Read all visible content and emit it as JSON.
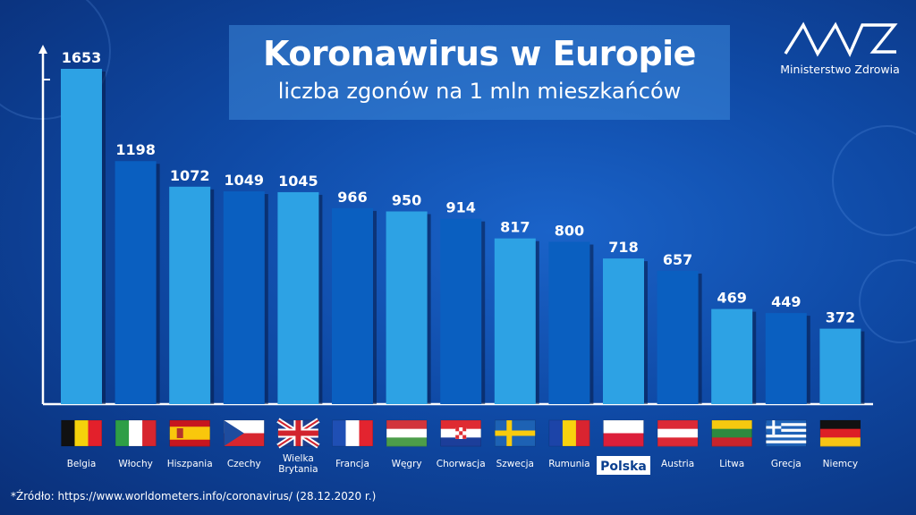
{
  "header": {
    "title": "Koronawirus w Europie",
    "subtitle": "liczba zgonów na 1 mln mieszkańców"
  },
  "logo": {
    "text": "Ministerstwo Zdrowia"
  },
  "source": "*Źródło: https://www.worldometers.info/coronavirus/ (28.12.2020 r.)",
  "colors": {
    "bar_light": "#2da2e4",
    "bar_dark": "#0a5fc0",
    "highlight_bg": "#ffffff",
    "highlight_text": "#0a3f8f"
  },
  "chart_data": {
    "type": "bar",
    "title": "Koronawirus w Europie",
    "subtitle": "liczba zgonów na 1 mln mieszkańców",
    "categories": [
      "Belgia",
      "Włochy",
      "Hiszpania",
      "Czechy",
      "Wielka Brytania",
      "Francja",
      "Węgry",
      "Chorwacja",
      "Szwecja",
      "Rumunia",
      "Polska",
      "Austria",
      "Litwa",
      "Grecja",
      "Niemcy"
    ],
    "values": [
      1653,
      1198,
      1072,
      1049,
      1045,
      966,
      950,
      914,
      817,
      800,
      718,
      657,
      469,
      449,
      372
    ],
    "highlighted": "Polska",
    "flags": [
      "belgium",
      "italy",
      "spain",
      "czechia",
      "united-kingdom",
      "france",
      "hungary",
      "croatia",
      "sweden",
      "romania",
      "poland",
      "austria",
      "lithuania",
      "greece",
      "germany"
    ],
    "ylim": [
      0,
      1653
    ],
    "grid": false,
    "legend": "none",
    "xlabel": "",
    "ylabel": ""
  }
}
